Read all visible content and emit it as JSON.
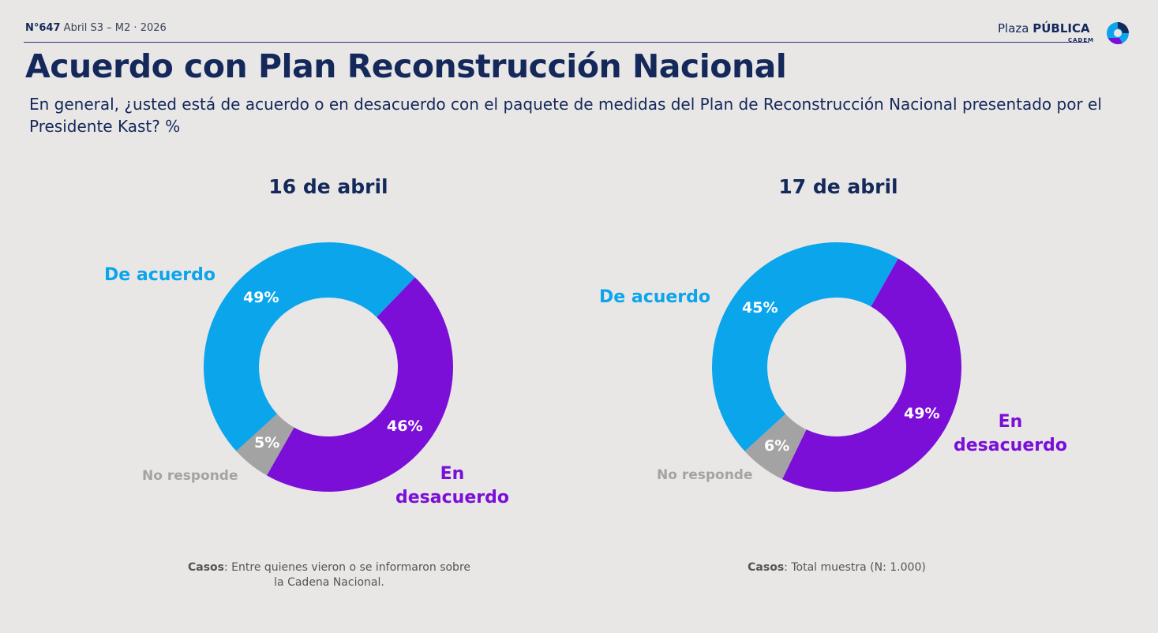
{
  "header": {
    "issue_number": "N°647",
    "issue_period": "Abril S3 – M2 · 2026",
    "logo": "Plaza PÚBLICA CADEM"
  },
  "title": "Acuerdo con Plan Reconstrucción Nacional",
  "subtitle": "En general, ¿usted está de acuerdo o en desacuerdo con el paquete de medidas del Plan de Reconstrucción Nacional presentado por el Presidente Kast? %",
  "colors": {
    "agree": "#0ba5ec",
    "disagree": "#7b0fd8",
    "no_answer": "#a3a3a3"
  },
  "chart_data": [
    {
      "type": "pie",
      "title": "16 de abril",
      "categories": [
        "De acuerdo",
        "En desacuerdo",
        "No responde"
      ],
      "values": [
        49,
        46,
        5
      ],
      "value_labels": [
        "49%",
        "46%",
        "5%"
      ],
      "cases_label": "Casos",
      "cases_text": ": Entre quienes vieron o se informaron sobre la Cadena Nacional."
    },
    {
      "type": "pie",
      "title": "17 de abril",
      "categories": [
        "De acuerdo",
        "En desacuerdo",
        "No responde"
      ],
      "values": [
        45,
        49,
        6
      ],
      "value_labels": [
        "45%",
        "49%",
        "6%"
      ],
      "cases_label": "Casos",
      "cases_text": ": Total muestra (N: 1.000)"
    }
  ]
}
